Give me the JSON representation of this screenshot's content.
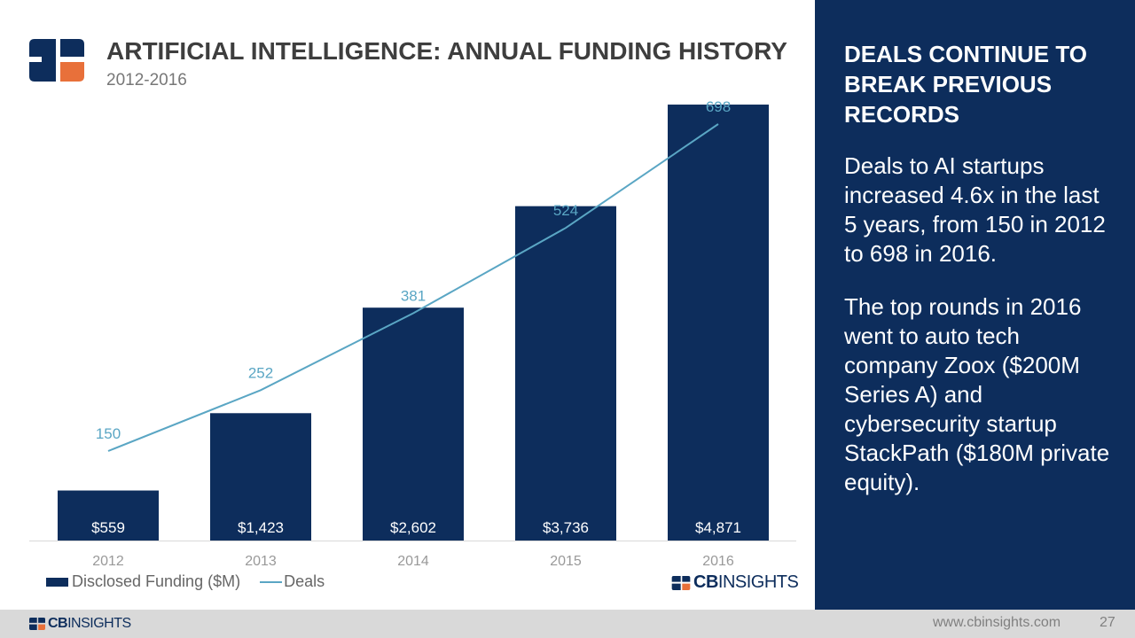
{
  "header": {
    "title": "ARTIFICIAL INTELLIGENCE: ANNUAL FUNDING HISTORY",
    "subtitle": "2012-2016"
  },
  "chart_data": {
    "type": "bar",
    "title": "ARTIFICIAL INTELLIGENCE: ANNUAL FUNDING HISTORY",
    "subtitle": "2012-2016",
    "categories": [
      "2012",
      "2013",
      "2014",
      "2015",
      "2016"
    ],
    "series": [
      {
        "name": "Disclosed Funding ($M)",
        "type": "bar",
        "values": [
          559,
          1423,
          2602,
          3736,
          4871
        ],
        "labels": [
          "$559",
          "$1,423",
          "$2,602",
          "$3,736",
          "$4,871"
        ]
      },
      {
        "name": "Deals",
        "type": "line",
        "values": [
          150,
          252,
          381,
          524,
          698
        ],
        "labels": [
          "150",
          "252",
          "381",
          "524",
          "698"
        ]
      }
    ],
    "xlabel": "",
    "ylabel": "",
    "ylim_bar": [
      0,
      5000
    ],
    "ylim_line": [
      0,
      750
    ],
    "grid": false,
    "legend": "bottom-left"
  },
  "legend": {
    "bar_label": "Disclosed Funding ($M)",
    "line_label": "Deals"
  },
  "brand": {
    "bold": "CB",
    "light": "INSIGHTS"
  },
  "side_panel": {
    "heading": "DEALS CONTINUE TO BREAK PREVIOUS RECORDS",
    "paragraph1": "Deals to AI startups increased 4.6x in the last 5 years, from 150 in 2012 to 698 in 2016.",
    "paragraph2": "The top rounds in 2016 went to auto tech company Zoox ($200M Series A) and cybersecurity startup StackPath ($180M private equity)."
  },
  "footer": {
    "url": "www.cbinsights.com",
    "page": "27"
  },
  "colors": {
    "navy": "#0d2d5c",
    "line": "#5aa6c4",
    "orange": "#e8703a",
    "axis_text": "#999999",
    "footer_bg": "#d9d9d9"
  }
}
